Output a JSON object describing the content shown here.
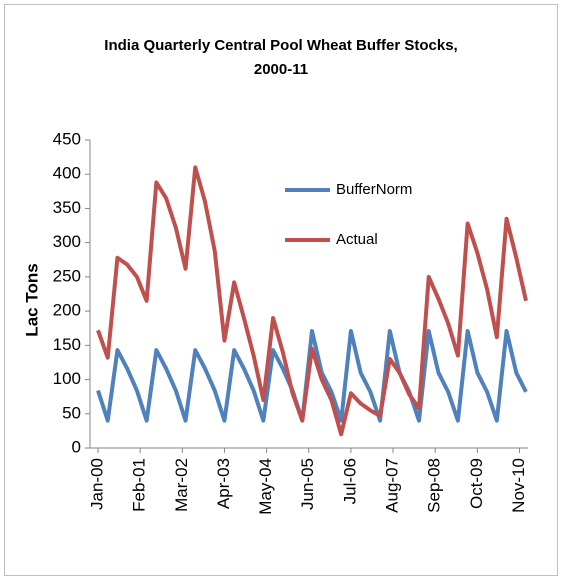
{
  "chart_data": {
    "type": "line",
    "title": "India Quarterly Central Pool Wheat Buffer Stocks, 2000-11",
    "ylabel": "Lac Tons",
    "x": [
      "2000-01",
      "2000-04",
      "2000-07",
      "2000-10",
      "2001-01",
      "2001-04",
      "2001-07",
      "2001-10",
      "2002-01",
      "2002-04",
      "2002-07",
      "2002-10",
      "2003-01",
      "2003-04",
      "2003-07",
      "2003-10",
      "2004-01",
      "2004-04",
      "2004-07",
      "2004-10",
      "2005-01",
      "2005-04",
      "2005-07",
      "2005-10",
      "2006-01",
      "2006-04",
      "2006-07",
      "2006-10",
      "2007-01",
      "2007-04",
      "2007-07",
      "2007-10",
      "2008-01",
      "2008-04",
      "2008-07",
      "2008-10",
      "2009-01",
      "2009-04",
      "2009-07",
      "2009-10",
      "2010-01",
      "2010-04",
      "2010-07",
      "2010-10",
      "2011-01"
    ],
    "series": [
      {
        "name": "BufferNorm",
        "color": "#4f81bd",
        "values": [
          84,
          40,
          143,
          116,
          84,
          40,
          143,
          116,
          84,
          40,
          143,
          116,
          84,
          40,
          143,
          116,
          84,
          40,
          143,
          116,
          84,
          40,
          171,
          110,
          82,
          40,
          171,
          110,
          82,
          40,
          171,
          110,
          82,
          40,
          171,
          110,
          82,
          40,
          171,
          110,
          82,
          40,
          171,
          110,
          82
        ]
      },
      {
        "name": "Actual",
        "color": "#c0504d",
        "values": [
          172,
          132,
          278,
          268,
          250,
          215,
          388,
          365,
          322,
          262,
          410,
          360,
          288,
          157,
          242,
          190,
          135,
          70,
          190,
          140,
          80,
          40,
          145,
          100,
          70,
          20,
          80,
          65,
          55,
          47,
          130,
          110,
          78,
          58,
          250,
          218,
          182,
          135,
          328,
          285,
          232,
          162,
          335,
          278,
          215
        ]
      }
    ],
    "xlim": [
      "2000-01",
      "2011-01"
    ],
    "xticks": [
      {
        "value": "2000-01",
        "label": "Jan-00"
      },
      {
        "value": "2001-02",
        "label": "Feb-01"
      },
      {
        "value": "2002-03",
        "label": "Mar-02"
      },
      {
        "value": "2003-04",
        "label": "Apr-03"
      },
      {
        "value": "2004-05",
        "label": "May-04"
      },
      {
        "value": "2005-06",
        "label": "Jun-05"
      },
      {
        "value": "2006-07",
        "label": "Jul-06"
      },
      {
        "value": "2007-08",
        "label": "Aug-07"
      },
      {
        "value": "2008-09",
        "label": "Sep-08"
      },
      {
        "value": "2009-10",
        "label": "Oct-09"
      },
      {
        "value": "2010-11",
        "label": "Nov-10"
      }
    ],
    "ylim": [
      0,
      450
    ],
    "yticks": [
      0,
      50,
      100,
      150,
      200,
      250,
      300,
      350,
      400,
      450
    ],
    "grid": false,
    "legend": "right"
  }
}
